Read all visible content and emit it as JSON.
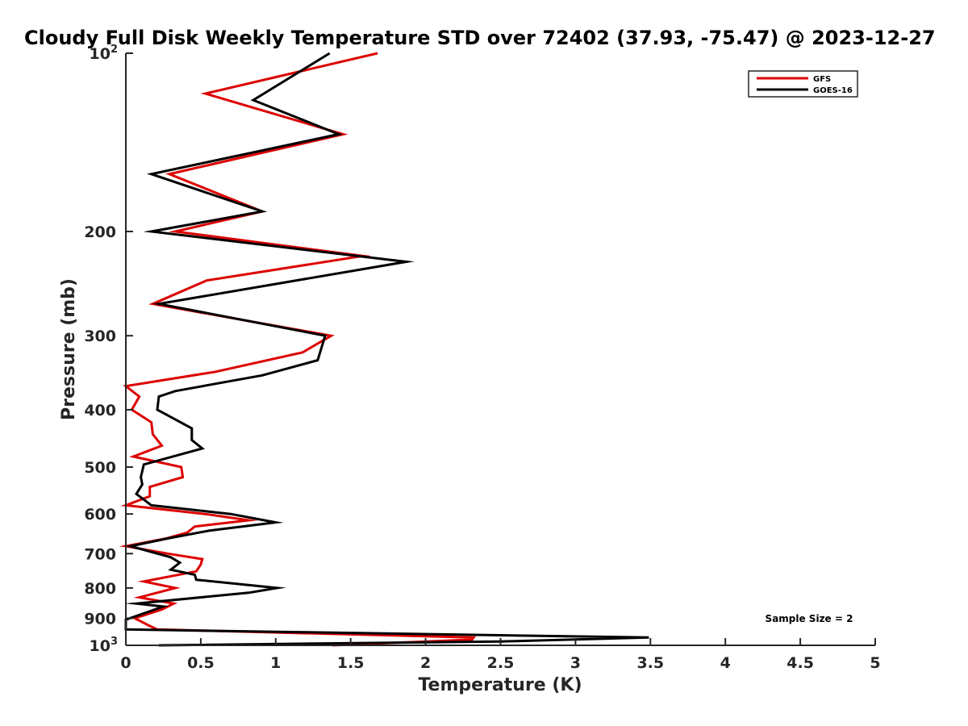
{
  "chart_data": {
    "type": "line",
    "title": "Cloudy Full Disk Weekly Temperature STD over 72402 (37.93, -75.47) @ 2023-12-27",
    "xlabel": "Temperature (K)",
    "ylabel": "Pressure (mb)",
    "xlim": [
      0,
      5
    ],
    "ylim": [
      100,
      1000
    ],
    "yscale": "log",
    "y_reversed": true,
    "x_ticks": [
      "0",
      "0.5",
      "1",
      "1.5",
      "2",
      "2.5",
      "3",
      "3.5",
      "4",
      "4.5",
      "5"
    ],
    "y_ticks": [
      {
        "value": 100,
        "label": "10",
        "exp": "2"
      },
      {
        "value": 200,
        "label": "200"
      },
      {
        "value": 300,
        "label": "300"
      },
      {
        "value": 400,
        "label": "400"
      },
      {
        "value": 500,
        "label": "500"
      },
      {
        "value": 600,
        "label": "600"
      },
      {
        "value": 700,
        "label": "700"
      },
      {
        "value": 800,
        "label": "800"
      },
      {
        "value": 900,
        "label": "900"
      },
      {
        "value": 1000,
        "label": "10",
        "exp": "3"
      }
    ],
    "grid": false,
    "legend_position": "top-right",
    "annotation": "Sample Size = 2",
    "series": [
      {
        "name": "GFS",
        "color": "#dd0000",
        "points": [
          [
            1.68,
            100
          ],
          [
            0.53,
            117
          ],
          [
            1.45,
            137
          ],
          [
            0.29,
            160
          ],
          [
            0.91,
            185
          ],
          [
            0.33,
            200
          ],
          [
            1.58,
            220
          ],
          [
            0.54,
            242
          ],
          [
            0.18,
            265
          ],
          [
            1.37,
            300
          ],
          [
            1.18,
            320
          ],
          [
            0.6,
            345
          ],
          [
            0.0,
            365
          ],
          [
            0.09,
            380
          ],
          [
            0.04,
            400
          ],
          [
            0.17,
            420
          ],
          [
            0.18,
            440
          ],
          [
            0.24,
            460
          ],
          [
            0.05,
            480
          ],
          [
            0.37,
            500
          ],
          [
            0.38,
            520
          ],
          [
            0.16,
            540
          ],
          [
            0.16,
            560
          ],
          [
            0.0,
            580
          ],
          [
            0.53,
            600
          ],
          [
            0.82,
            615
          ],
          [
            0.46,
            630
          ],
          [
            0.41,
            645
          ],
          [
            0.27,
            660
          ],
          [
            0.0,
            680
          ],
          [
            0.28,
            700
          ],
          [
            0.51,
            715
          ],
          [
            0.5,
            730
          ],
          [
            0.47,
            750
          ],
          [
            0.12,
            780
          ],
          [
            0.33,
            800
          ],
          [
            0.09,
            830
          ],
          [
            0.32,
            850
          ],
          [
            0.24,
            870
          ],
          [
            0.06,
            900
          ],
          [
            0.15,
            925
          ],
          [
            0.21,
            940
          ],
          [
            2.32,
            970
          ],
          [
            2.31,
            978
          ],
          [
            1.38,
            1000
          ]
        ]
      },
      {
        "name": "GOES-16",
        "color": "#000000",
        "points": [
          [
            1.36,
            100
          ],
          [
            0.85,
            120
          ],
          [
            1.42,
            137
          ],
          [
            0.17,
            160
          ],
          [
            0.91,
            185
          ],
          [
            0.17,
            200
          ],
          [
            1.87,
            225
          ],
          [
            0.22,
            265
          ],
          [
            1.33,
            300
          ],
          [
            1.28,
            330
          ],
          [
            0.91,
            350
          ],
          [
            0.33,
            372
          ],
          [
            0.22,
            380
          ],
          [
            0.21,
            400
          ],
          [
            0.44,
            430
          ],
          [
            0.44,
            450
          ],
          [
            0.51,
            465
          ],
          [
            0.12,
            495
          ],
          [
            0.1,
            520
          ],
          [
            0.11,
            535
          ],
          [
            0.07,
            555
          ],
          [
            0.17,
            580
          ],
          [
            0.7,
            600
          ],
          [
            1.0,
            620
          ],
          [
            0.56,
            640
          ],
          [
            0.28,
            660
          ],
          [
            0.03,
            680
          ],
          [
            0.3,
            710
          ],
          [
            0.36,
            725
          ],
          [
            0.3,
            745
          ],
          [
            0.46,
            760
          ],
          [
            0.47,
            775
          ],
          [
            1.01,
            800
          ],
          [
            0.82,
            815
          ],
          [
            0.07,
            850
          ],
          [
            0.25,
            860
          ],
          [
            0.0,
            905
          ],
          [
            0.0,
            940
          ],
          [
            1.15,
            950
          ],
          [
            3.49,
            970
          ],
          [
            2.5,
            985
          ],
          [
            0.22,
            1000
          ]
        ]
      }
    ]
  }
}
